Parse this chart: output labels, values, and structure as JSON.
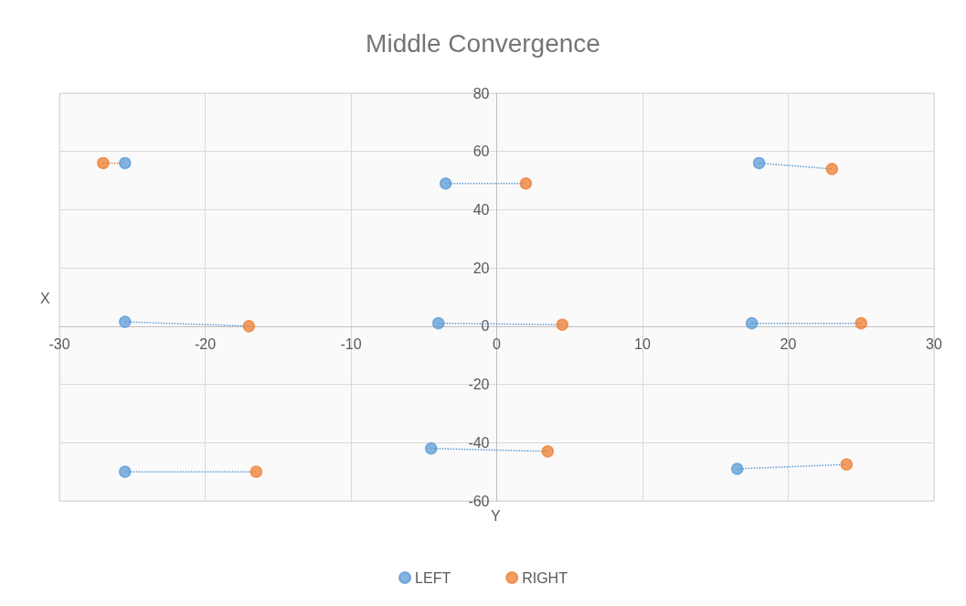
{
  "chart_data": {
    "type": "scatter",
    "title": "Middle Convergence",
    "xlabel": "Y",
    "ylabel": "X",
    "xlim": [
      -30,
      30
    ],
    "xticks": [
      -30,
      -20,
      -10,
      0,
      10,
      20,
      30
    ],
    "ylim": [
      -60,
      80
    ],
    "yticks": [
      -60,
      -40,
      -20,
      0,
      20,
      40,
      60,
      80
    ],
    "grid": true,
    "legend": "bottom",
    "marker": "circle",
    "series": [
      {
        "name": "LEFT",
        "color": "#5b9bd5",
        "x": [
          -25.5,
          -3.5,
          18,
          -25.5,
          -4,
          17.5,
          -25.5,
          -4.5,
          16.5
        ],
        "values": [
          56,
          49,
          56,
          1.5,
          1,
          1,
          -50,
          -42,
          -49
        ]
      },
      {
        "name": "RIGHT",
        "color": "#ed7d31",
        "x": [
          -27,
          2,
          23,
          -17,
          4.5,
          25,
          -16.5,
          3.5,
          24
        ],
        "values": [
          56,
          49,
          54,
          0,
          0.5,
          1,
          -50,
          -43,
          -47.5
        ]
      },
      {
        "type": "line",
        "color": "#ed7d31",
        "marker": "none",
        "line_style": "dotted",
        "x": [
          -27,
          -25.5
        ],
        "values": [
          56,
          56
        ]
      },
      {
        "type": "line",
        "color": "#5b9bd5",
        "marker": "none",
        "line_style": "dotted",
        "x": [
          -3.5,
          2
        ],
        "values": [
          49,
          49
        ]
      },
      {
        "type": "line",
        "color": "#5b9bd5",
        "marker": "none",
        "line_style": "dotted",
        "x": [
          18,
          23
        ],
        "values": [
          56,
          54
        ]
      },
      {
        "type": "line",
        "color": "#5b9bd5",
        "marker": "none",
        "line_style": "dotted",
        "x": [
          -25.5,
          -17
        ],
        "values": [
          1.5,
          0
        ]
      },
      {
        "type": "line",
        "color": "#5b9bd5",
        "marker": "none",
        "line_style": "dotted",
        "x": [
          -4,
          4.5
        ],
        "values": [
          1,
          0.5
        ]
      },
      {
        "type": "line",
        "color": "#5b9bd5",
        "marker": "none",
        "line_style": "dotted",
        "x": [
          17.5,
          25
        ],
        "values": [
          1,
          1
        ]
      },
      {
        "type": "line",
        "color": "#5b9bd5",
        "marker": "none",
        "line_style": "dotted",
        "x": [
          -25.5,
          -16.5
        ],
        "values": [
          -50,
          -50
        ]
      },
      {
        "type": "line",
        "color": "#5b9bd5",
        "marker": "none",
        "line_style": "dotted",
        "x": [
          -4.5,
          3.5
        ],
        "values": [
          -42,
          -43
        ]
      },
      {
        "type": "line",
        "color": "#5b9bd5",
        "marker": "none",
        "line_style": "dotted",
        "x": [
          16.5,
          24
        ],
        "values": [
          -49,
          -47.5
        ]
      }
    ]
  }
}
